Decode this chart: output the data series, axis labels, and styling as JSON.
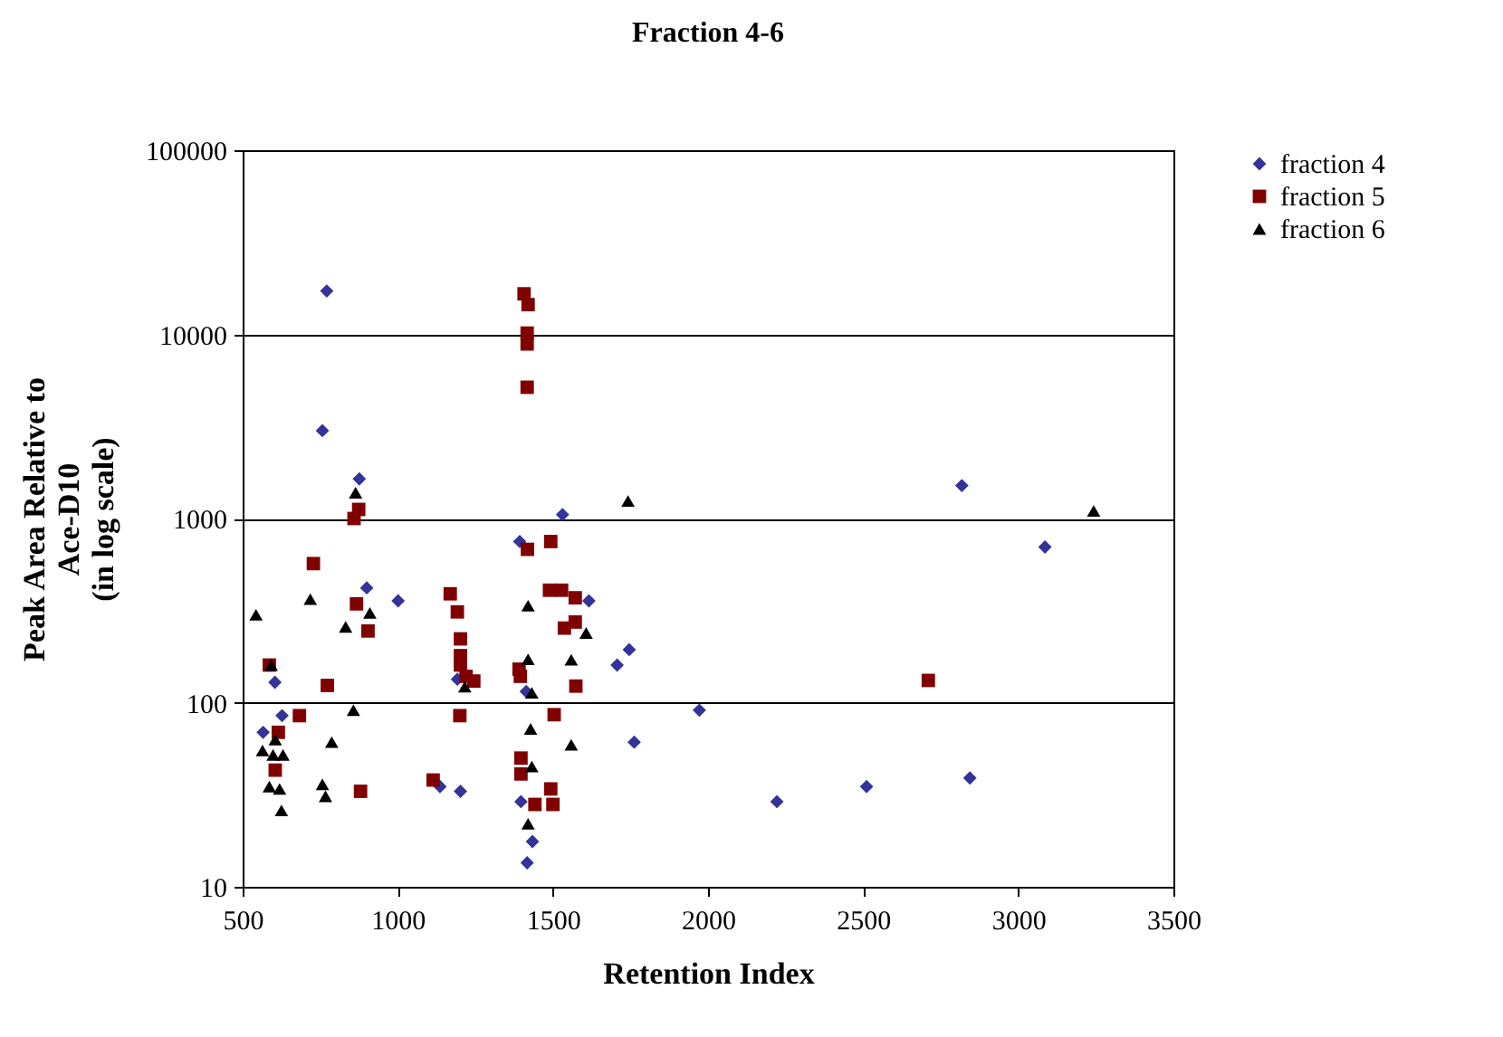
{
  "chart_data": {
    "type": "scatter",
    "title": "Fraction 4-6",
    "xlabel": "Retention Index",
    "ylabel": "Peak Area Relative to\nAce-D10\n(in log scale)",
    "xlim": [
      500,
      3500
    ],
    "xticks": [
      500,
      1000,
      1500,
      2000,
      2500,
      3000,
      3500
    ],
    "ylim": [
      10,
      100000
    ],
    "yticks": [
      10,
      100,
      1000,
      10000,
      100000
    ],
    "log": true,
    "grid": "y",
    "legend": "right",
    "series": [
      {
        "name": "fraction 4",
        "color": "#333399",
        "marker": "diamond",
        "x": [
          566,
          604,
          627,
          757,
          771,
          876,
          900,
          1001,
          1136,
          1192,
          1202,
          1393,
          1397,
          1414,
          1434,
          1417,
          1531,
          1616,
          1707,
          1746,
          1762,
          1972,
          2222,
          2511,
          2818,
          2844,
          3086
        ],
        "values": [
          69,
          129,
          85,
          3000,
          17200,
          1640,
          420,
          357,
          35,
          134,
          33,
          750,
          29,
          115,
          17.6,
          13.5,
          1050,
          357,
          160,
          194,
          61,
          91,
          29,
          35,
          1510,
          39,
          700
        ]
      },
      {
        "name": "fraction 5",
        "color": "#800000",
        "marker": "square",
        "x": [
          1407,
          1420,
          1417,
          1417,
          1417,
          874,
          859,
          728,
          1493,
          1418,
          867,
          904,
          586,
          773,
          683,
          615,
          605,
          880,
          1114,
          1169,
          1192,
          1202,
          1202,
          1202,
          1220,
          1245,
          1200,
          1391,
          1395,
          1397,
          1397,
          1442,
          1493,
          1500,
          1504,
          1489,
          1528,
          1572,
          1537,
          1572,
          1574,
          2710
        ],
        "values": [
          16600,
          14500,
          10160,
          8870,
          5160,
          1120,
          1000,
          569,
          750,
          680,
          344,
          245,
          160,
          124,
          85,
          69,
          43,
          33,
          38,
          390,
          311,
          222,
          180,
          160,
          139,
          131,
          85,
          152,
          139,
          50,
          41,
          28,
          34,
          28,
          86,
          408,
          408,
          371,
          254,
          274,
          123,
          132
        ]
      },
      {
        "name": "fraction 6",
        "color": "#000000",
        "marker": "triangle",
        "x": [
          543,
          592,
          718,
          864,
          832,
          910,
          857,
          787,
          564,
          605,
          630,
          598,
          586,
          619,
          625,
          757,
          767,
          1216,
          1420,
          1420,
          1432,
          1428,
          1432,
          1420,
          1742,
          1607,
          1559,
          1559,
          3243
        ],
        "values": [
          300,
          160,
          365,
          1380,
          258,
          307,
          91,
          61,
          55,
          63,
          52,
          52,
          35,
          34,
          26,
          36,
          31,
          122,
          336,
          172,
          113,
          72,
          45,
          22,
          1245,
          239,
          171,
          59,
          1100
        ]
      }
    ]
  }
}
